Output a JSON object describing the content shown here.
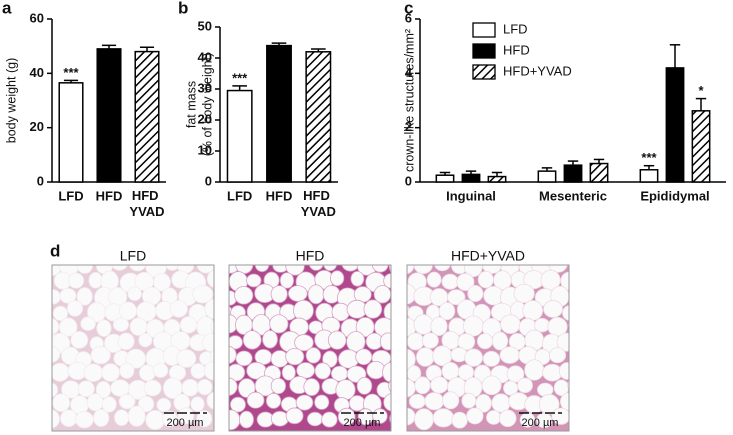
{
  "chart_data": [
    {
      "type": "bar",
      "panel": "a",
      "ylabel": "body weight (g)",
      "categories": [
        "LFD",
        "HFD",
        "HFD YVAD"
      ],
      "series": [
        {
          "values": [
            36.5,
            49,
            48
          ],
          "errors": [
            0.9,
            1.3,
            1.6
          ],
          "fills": [
            "white",
            "black",
            "hatched"
          ],
          "significance": [
            "***",
            null,
            null
          ]
        }
      ],
      "ylim": [
        0,
        60
      ],
      "yticks": [
        0,
        20,
        40,
        60
      ]
    },
    {
      "type": "bar",
      "panel": "b",
      "ylabel": [
        "fat mass",
        "(% of body weight)"
      ],
      "categories": [
        "LFD",
        "HFD",
        "HFD YVAD"
      ],
      "series": [
        {
          "values": [
            29.5,
            44,
            42
          ],
          "errors": [
            1.5,
            0.8,
            0.9
          ],
          "fills": [
            "white",
            "black",
            "hatched"
          ],
          "significance": [
            "***",
            null,
            null
          ]
        }
      ],
      "ylim": [
        0,
        50
      ],
      "yticks": [
        0,
        10,
        20,
        30,
        40,
        50
      ]
    },
    {
      "type": "grouped-bar",
      "panel": "c",
      "ylabel": "crown-like structures/mm²",
      "categories": [
        "Inguinal",
        "Mesenteric",
        "Epididymal"
      ],
      "series": [
        {
          "name": "LFD",
          "fill": "white",
          "values": [
            0.25,
            0.4,
            0.45
          ],
          "errors": [
            0.1,
            0.12,
            0.15
          ],
          "significance": [
            null,
            null,
            "***"
          ]
        },
        {
          "name": "HFD",
          "fill": "black",
          "values": [
            0.28,
            0.62,
            4.2
          ],
          "errors": [
            0.12,
            0.15,
            0.85
          ],
          "significance": [
            null,
            null,
            null
          ]
        },
        {
          "name": "HFD+YVAD",
          "fill": "hatched",
          "values": [
            0.2,
            0.68,
            2.62
          ],
          "errors": [
            0.15,
            0.15,
            0.45
          ],
          "significance": [
            null,
            null,
            "*"
          ]
        }
      ],
      "ylim": [
        0,
        6
      ],
      "yticks": [
        0,
        2,
        4,
        6
      ],
      "legend": "top-left"
    }
  ],
  "histology": {
    "panel": "d",
    "images": [
      {
        "label": "LFD"
      },
      {
        "label": "HFD"
      },
      {
        "label": "HFD+YVAD"
      }
    ],
    "scale_bar": "200 µm"
  }
}
